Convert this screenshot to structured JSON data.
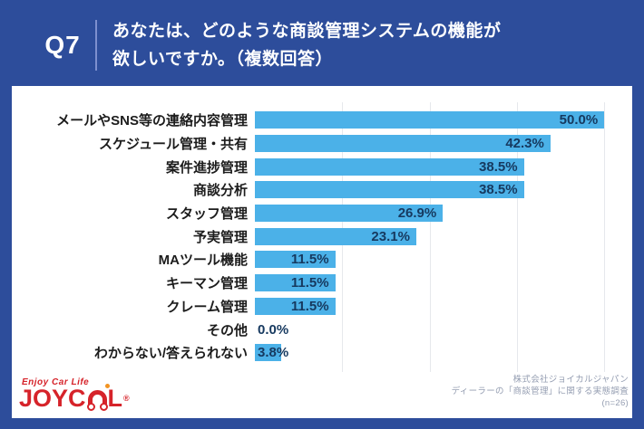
{
  "header": {
    "question_number": "Q7",
    "question_line1": "あなたは、どのような商談管理システムの機能が",
    "question_line2": "欲しいですか。（複数回答）"
  },
  "chart_data": {
    "type": "bar",
    "orientation": "horizontal",
    "categories": [
      "メールやSNS等の連絡内容管理",
      "スケジュール管理・共有",
      "案件進捗管理",
      "商談分析",
      "スタッフ管理",
      "予実管理",
      "MAツール機能",
      "キーマン管理",
      "クレーム管理",
      "その他",
      "わからない/答えられない"
    ],
    "values": [
      50.0,
      42.3,
      38.5,
      38.5,
      26.9,
      23.1,
      11.5,
      11.5,
      11.5,
      0.0,
      3.8
    ],
    "value_suffix": "%",
    "xlim": [
      0,
      54
    ],
    "gridlines": [
      12.5,
      25,
      37.5,
      50
    ],
    "grid": "vertical-light",
    "legend": "none",
    "title": "",
    "xlabel": "",
    "ylabel": "",
    "bar_color": "#4bb1e8",
    "value_label_color": "#16395f",
    "inside_label_threshold": 7
  },
  "footer": {
    "logo": {
      "tagline": "Enjoy Car Life",
      "brand_left": "JOYC",
      "brand_right": "L",
      "registered_mark": "®"
    },
    "source_line1": "株式会社ジョイカルジャパン",
    "source_line2": "ディーラーの「商談管理」に関する実態調査",
    "sample_size": "(n=26)"
  },
  "colors": {
    "frame_blue": "#2d4d9b",
    "bar_blue": "#4bb1e8",
    "logo_red": "#d6232a"
  }
}
